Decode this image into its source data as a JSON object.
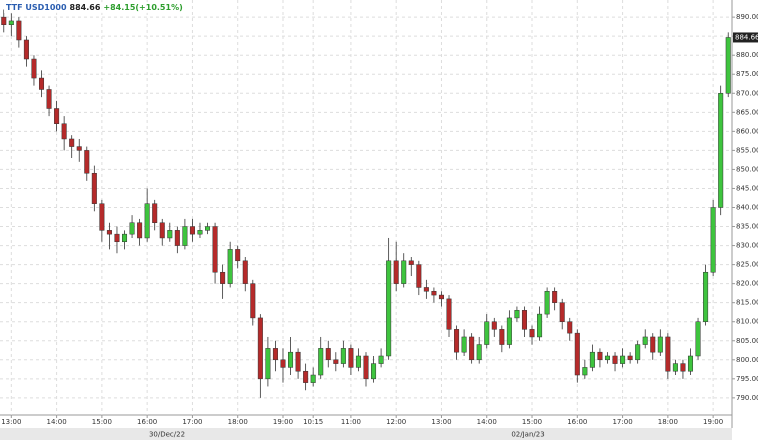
{
  "chart_data": {
    "type": "candlestick",
    "title": "TTF USD1000",
    "change": "+84.15(+10.51%)",
    "date_labels": [
      "30/Dec/22",
      "02/Jan/23"
    ],
    "up_color": "#3ec43e",
    "down_color": "#b52a2a",
    "grid": true,
    "categories": [
      null,
      "13:00",
      null,
      null,
      null,
      null,
      null,
      "14:00",
      null,
      null,
      null,
      null,
      null,
      "15:00",
      null,
      null,
      null,
      null,
      null,
      "16:00",
      null,
      null,
      null,
      null,
      null,
      "17:00",
      null,
      null,
      null,
      null,
      null,
      "18:00",
      null,
      null,
      null,
      null,
      null,
      "19:00",
      null,
      null,
      null,
      "10:15",
      null,
      null,
      null,
      null,
      "11:00",
      null,
      null,
      null,
      null,
      null,
      "12:00",
      null,
      null,
      null,
      null,
      null,
      "13:00",
      null,
      null,
      null,
      null,
      null,
      "14:00",
      null,
      null,
      null,
      null,
      null,
      "15:00",
      null,
      null,
      null,
      null,
      null,
      "16:00",
      null,
      null,
      null,
      null,
      null,
      "17:00",
      null,
      null,
      null,
      null,
      null,
      "18:00",
      null,
      null,
      null,
      null,
      null,
      "19:00",
      null,
      null
    ],
    "open": [
      890,
      888,
      889,
      884,
      879,
      874,
      871,
      866,
      862,
      858,
      856,
      855,
      849,
      841,
      834,
      833,
      831,
      833,
      836,
      832,
      841,
      836,
      832,
      834,
      830,
      835,
      833,
      834,
      835,
      823,
      820,
      829,
      826,
      820,
      811,
      795,
      803,
      800,
      798,
      802,
      797,
      794,
      796,
      803,
      800,
      799,
      803,
      798,
      801,
      795,
      799,
      801,
      826,
      820,
      826,
      825,
      819,
      818,
      817,
      816,
      808,
      802,
      806,
      800,
      804,
      810,
      808,
      804,
      811,
      813,
      808,
      806,
      812,
      818,
      815,
      810,
      807,
      796,
      798,
      802,
      800,
      801,
      799,
      801,
      800,
      804,
      806,
      802,
      806,
      797,
      799,
      797,
      801,
      810,
      823,
      840,
      870
    ],
    "high": [
      892,
      891,
      890,
      885,
      880,
      876,
      872,
      868,
      864,
      859,
      858,
      856,
      851,
      842,
      836,
      835,
      834,
      838,
      837,
      845,
      842,
      837,
      836,
      835,
      837,
      837,
      836,
      836,
      836,
      825,
      831,
      830,
      827,
      821,
      812,
      806,
      805,
      803,
      806,
      803,
      799,
      798,
      806,
      805,
      802,
      805,
      804,
      803,
      802,
      801,
      803,
      832,
      831,
      828,
      827,
      826,
      821,
      819,
      818,
      817,
      809,
      808,
      807,
      806,
      812,
      811,
      809,
      813,
      814,
      814,
      809,
      814,
      819,
      819,
      816,
      811,
      808,
      800,
      804,
      803,
      802,
      802,
      803,
      802,
      805,
      808,
      807,
      808,
      807,
      800,
      800,
      803,
      811,
      825,
      842,
      872,
      886
    ],
    "low": [
      886,
      885,
      882,
      877,
      872,
      869,
      864,
      860,
      855,
      853,
      852,
      847,
      839,
      831,
      829,
      828,
      829,
      832,
      830,
      831,
      834,
      830,
      831,
      828,
      829,
      831,
      832,
      833,
      820,
      816,
      819,
      824,
      818,
      809,
      790,
      793,
      797,
      794,
      796,
      795,
      792,
      793,
      795,
      798,
      797,
      798,
      796,
      797,
      793,
      794,
      798,
      800,
      818,
      819,
      822,
      817,
      816,
      815,
      814,
      806,
      800,
      801,
      799,
      799,
      803,
      806,
      802,
      803,
      810,
      806,
      804,
      805,
      811,
      813,
      808,
      805,
      794,
      795,
      797,
      798,
      799,
      797,
      798,
      799,
      799,
      803,
      800,
      801,
      795,
      796,
      795,
      796,
      800,
      809,
      822,
      838,
      869
    ],
    "close": [
      888,
      889,
      884,
      879,
      874,
      871,
      866,
      862,
      858,
      856,
      855,
      849,
      841,
      834,
      833,
      831,
      833,
      836,
      832,
      841,
      836,
      832,
      834,
      830,
      835,
      833,
      834,
      835,
      823,
      820,
      829,
      826,
      820,
      811,
      795,
      803,
      800,
      798,
      802,
      797,
      794,
      796,
      803,
      800,
      799,
      803,
      798,
      801,
      795,
      799,
      801,
      826,
      820,
      826,
      825,
      819,
      818,
      817,
      816,
      808,
      802,
      806,
      800,
      804,
      810,
      808,
      804,
      811,
      813,
      808,
      806,
      812,
      818,
      815,
      810,
      807,
      796,
      798,
      802,
      800,
      801,
      799,
      801,
      800,
      804,
      806,
      802,
      806,
      797,
      799,
      797,
      801,
      810,
      823,
      840,
      870,
      884.66
    ],
    "ylim": [
      785.5,
      894.5
    ],
    "yticks": [
      {
        "value": 790,
        "label": "790.00"
      },
      {
        "value": 795,
        "label": "795.00"
      },
      {
        "value": 800,
        "label": "800.00"
      },
      {
        "value": 805,
        "label": "805.00"
      },
      {
        "value": 810,
        "label": "810.00"
      },
      {
        "value": 815,
        "label": "815.00"
      },
      {
        "value": 820,
        "label": "820.00"
      },
      {
        "value": 825,
        "label": "825.00"
      },
      {
        "value": 830,
        "label": "830.00"
      },
      {
        "value": 835,
        "label": "835.00"
      },
      {
        "value": 840,
        "label": "840.00"
      },
      {
        "value": 845,
        "label": "845.00"
      },
      {
        "value": 850,
        "label": "850.00"
      },
      {
        "value": 855,
        "label": "855.00"
      },
      {
        "value": 860,
        "label": "860.00"
      },
      {
        "value": 865,
        "label": "865.00"
      },
      {
        "value": 870,
        "label": "870.00"
      },
      {
        "value": 875,
        "label": "875.00"
      },
      {
        "value": 880,
        "label": "880.00"
      },
      {
        "value": 885,
        "label": "885.00"
      },
      {
        "value": 890,
        "label": "890.00"
      }
    ]
  }
}
